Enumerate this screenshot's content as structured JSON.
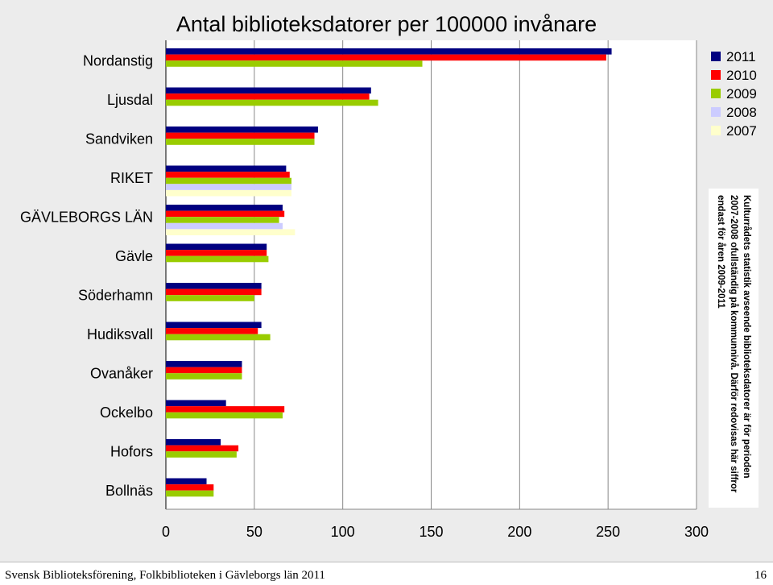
{
  "chart_data": {
    "type": "bar",
    "orientation": "horizontal",
    "title": "Antal biblioteksdatorer per 100000 invånare",
    "categories": [
      "Nordanstig",
      "Ljusdal",
      "Sandviken",
      "RIKET",
      "GÄVLEBORGS LÄN",
      "Gävle",
      "Söderhamn",
      "Hudiksvall",
      "Ovanåker",
      "Ockelbo",
      "Hofors",
      "Bollnäs"
    ],
    "series": [
      {
        "name": "2011",
        "color": "#000080",
        "values": [
          252,
          116,
          86,
          68,
          66,
          57,
          54,
          54,
          43,
          34,
          31,
          23
        ]
      },
      {
        "name": "2010",
        "color": "#ff0000",
        "values": [
          249,
          115,
          84,
          70,
          67,
          57,
          54,
          52,
          43,
          67,
          41,
          27
        ]
      },
      {
        "name": "2009",
        "color": "#99cc00",
        "values": [
          145,
          120,
          84,
          71,
          64,
          58,
          50,
          59,
          43,
          66,
          40,
          27
        ]
      },
      {
        "name": "2008",
        "color": "#ccccff",
        "values": [
          null,
          null,
          null,
          71,
          66,
          null,
          null,
          null,
          null,
          null,
          null,
          null
        ]
      },
      {
        "name": "2007",
        "color": "#ffffcc",
        "values": [
          null,
          null,
          null,
          71,
          73,
          null,
          null,
          null,
          null,
          null,
          null,
          null
        ]
      }
    ],
    "xlim": [
      0,
      300
    ],
    "x_ticks": [
      "0",
      "50",
      "100",
      "150",
      "200",
      "250",
      "300"
    ],
    "grid": true,
    "legend_position": "top-right"
  },
  "note": "Kulturrådets statistik avseende biblioteksdatorer är för perioden 2007-2008 ofullständig på kommunnivå. Därför redovisas här siffror endast för åren 2009-2011",
  "footer": {
    "source": "Svensk Biblioteksförening, Folkbiblioteken i Gävleborgs län 2011",
    "page": "16"
  }
}
